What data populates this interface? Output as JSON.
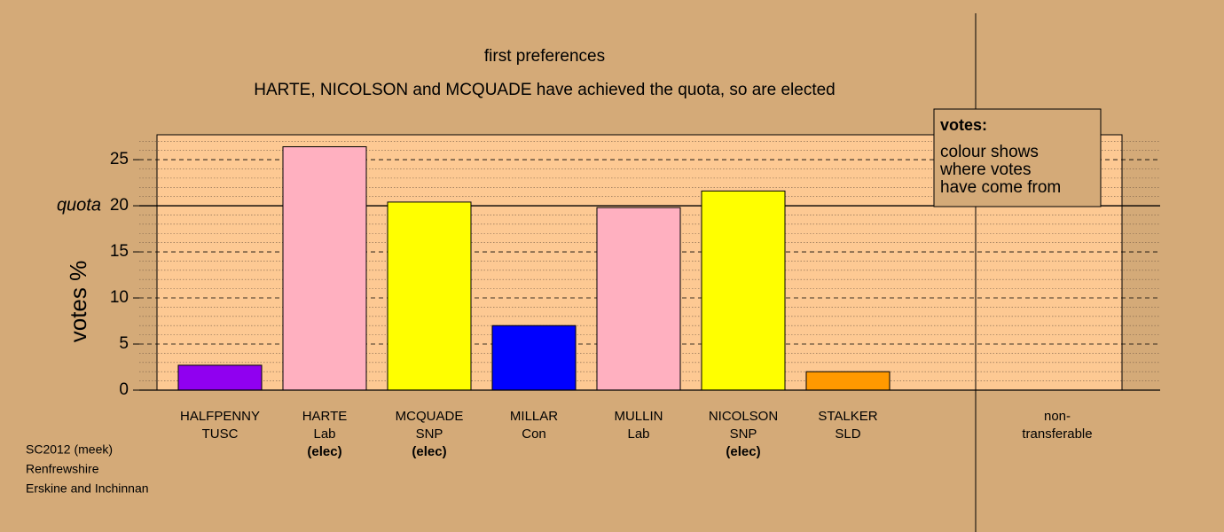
{
  "chart_data": {
    "type": "bar",
    "title": "first preferences",
    "subtitle": "HARTE, NICOLSON and MCQUADE have achieved the quota, so are elected",
    "y_label": "votes %",
    "categories": [
      [
        "HALFPENNY",
        "TUSC"
      ],
      [
        "HARTE",
        "Lab"
      ],
      [
        "MCQUADE",
        "SNP"
      ],
      [
        "MILLAR",
        "Con"
      ],
      [
        "MULLIN",
        "Lab"
      ],
      [
        "NICOLSON",
        "SNP"
      ],
      [
        "STALKER",
        "SLD"
      ],
      null,
      [
        "non-",
        "transferable"
      ]
    ],
    "notes": [
      null,
      "(elec)",
      "(elec)",
      null,
      null,
      "(elec)",
      null,
      null,
      null
    ],
    "values": [
      2.7,
      26.4,
      20.4,
      7.0,
      19.8,
      21.6,
      2.0,
      null,
      0
    ],
    "colors": [
      "#9000f0",
      "#ffb0c0",
      "#ffff00",
      "#0000ff",
      "#ffb0c0",
      "#ffff00",
      "#ff9900",
      null,
      "#ffffff"
    ],
    "ylim": [
      0,
      27.7
    ],
    "yticks": [
      0,
      5,
      10,
      15,
      20,
      25
    ],
    "yminorticks": [
      1,
      2,
      3,
      4,
      6,
      7,
      8,
      9,
      11,
      12,
      13,
      14,
      16,
      17,
      18,
      19,
      21,
      22,
      23,
      24,
      26,
      27
    ],
    "grid": true,
    "quota": 20,
    "quota_label": "quota",
    "legend": {
      "title": "votes:",
      "lines": [
        "colour shows",
        "where votes",
        "have come from"
      ]
    },
    "footer": [
      "SC2012 (meek)",
      "Renfrewshire",
      "Erskine and Inchinnan"
    ]
  }
}
